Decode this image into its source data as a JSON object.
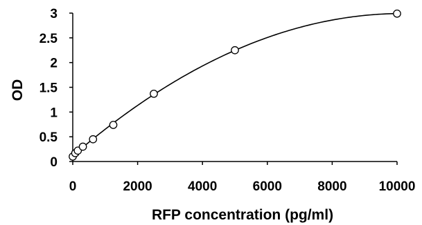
{
  "chart_data": {
    "type": "scatter",
    "title": "",
    "xlabel": "RFP concentration (pg/ml)",
    "ylabel": "OD",
    "xlim": [
      0,
      10000
    ],
    "ylim": [
      0,
      3
    ],
    "x_ticks": [
      "0",
      "2000",
      "4000",
      "6000",
      "8000",
      "10000"
    ],
    "y_ticks": [
      "0",
      "0.5",
      "1",
      "1.5",
      "2",
      "2.5",
      "3"
    ],
    "grid": false,
    "legend": "none",
    "series": [
      {
        "marker": "open-circle",
        "trendline": "polynomial",
        "x": [
          0,
          78,
          156,
          312,
          625,
          1250,
          2500,
          5000,
          10000
        ],
        "y": [
          0.1,
          0.17,
          0.22,
          0.3,
          0.45,
          0.74,
          1.37,
          2.25,
          2.99
        ]
      }
    ]
  }
}
